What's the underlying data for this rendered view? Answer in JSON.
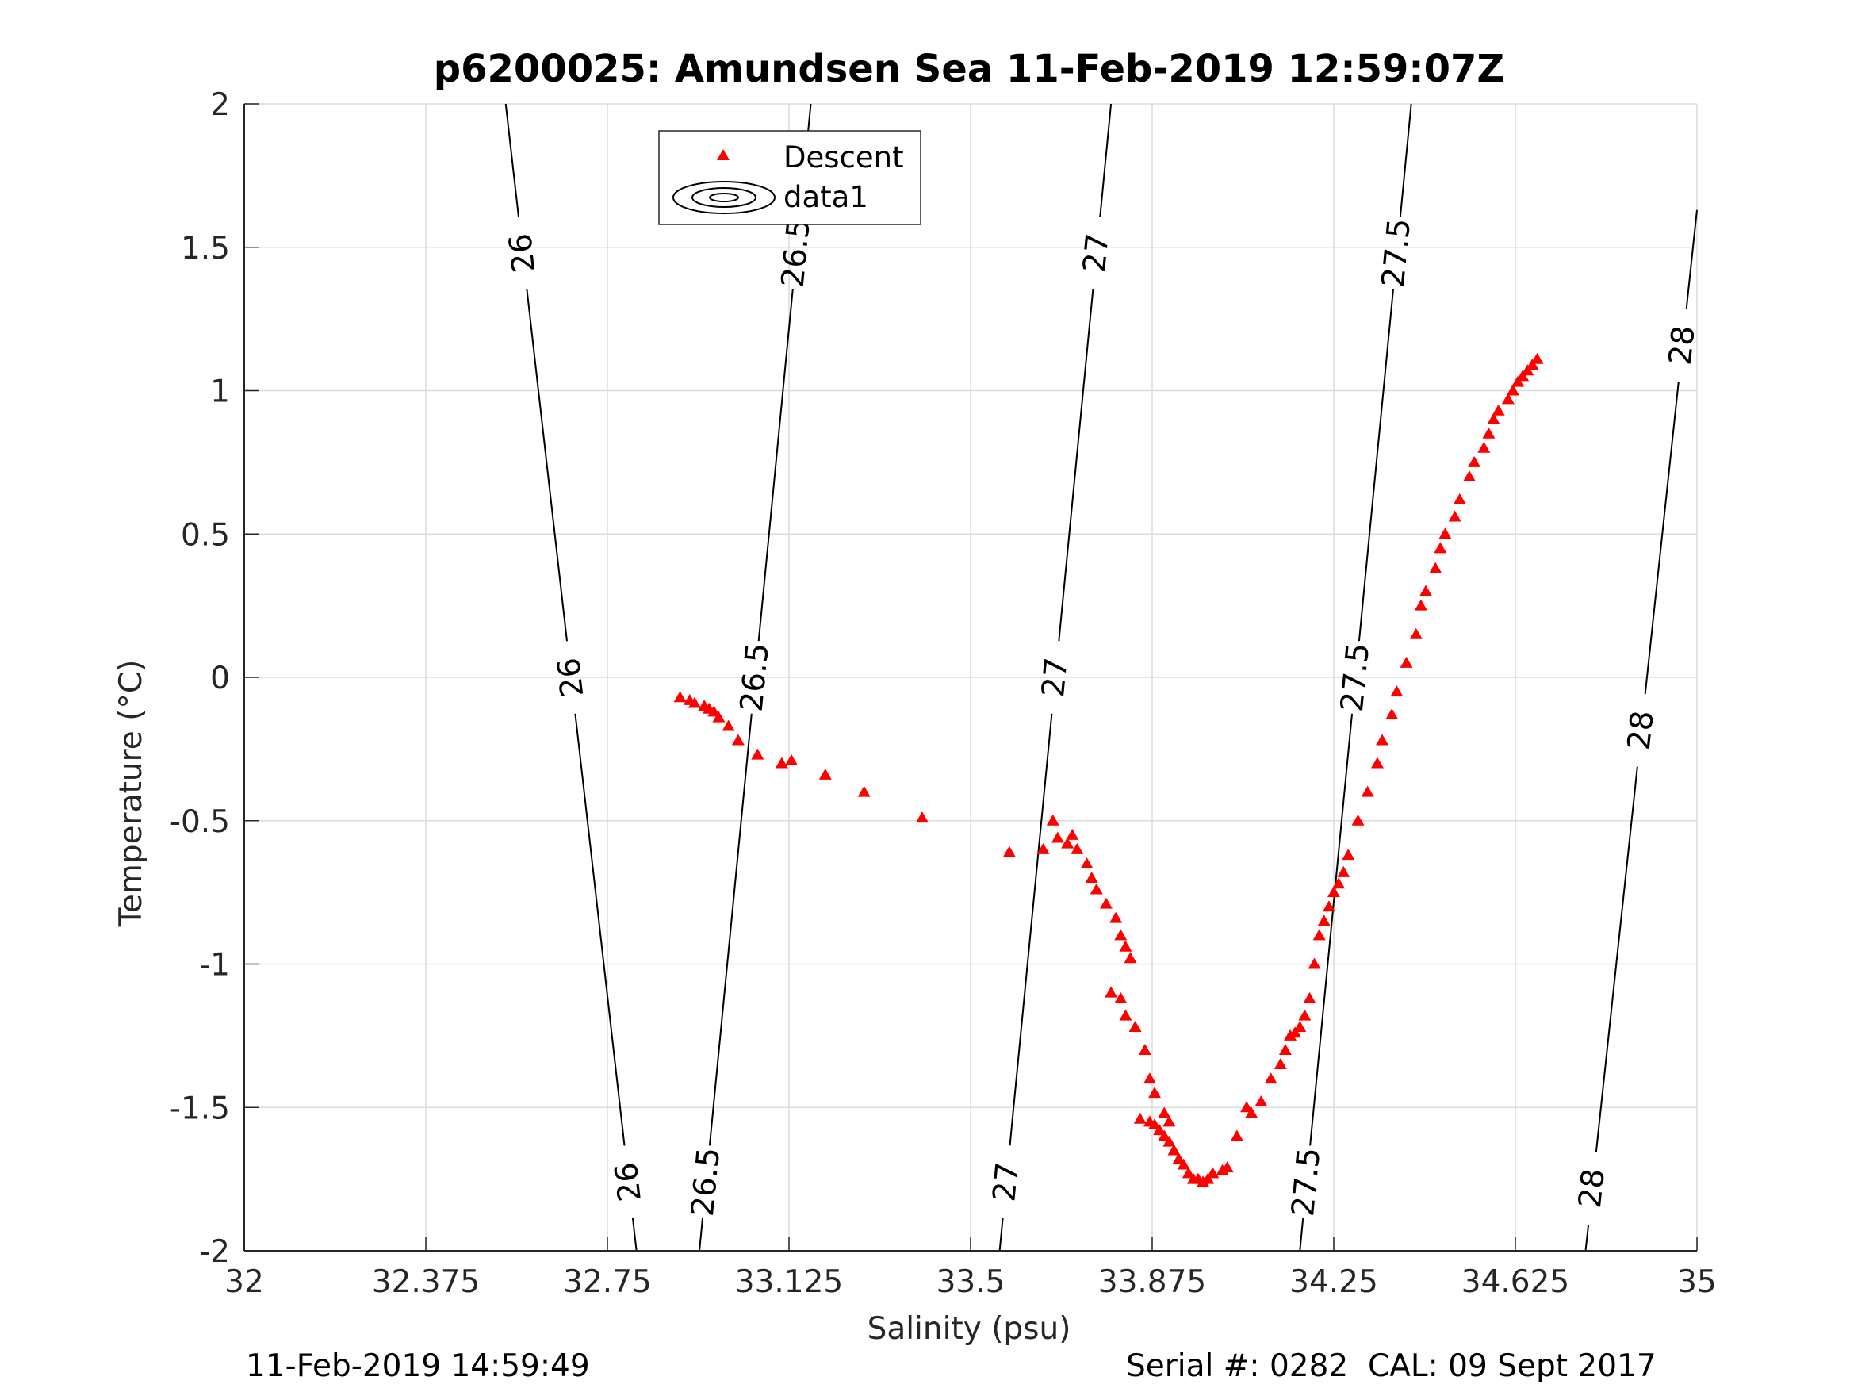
{
  "chart_data": {
    "type": "scatter",
    "title": "p6200025: Amundsen Sea 11-Feb-2019 12:59:07Z",
    "xlabel": "Salinity (psu)",
    "ylabel": "Temperature (°C)",
    "xlim": [
      32,
      35
    ],
    "ylim": [
      -2,
      2
    ],
    "xticks": [
      32,
      32.375,
      32.75,
      33.125,
      33.5,
      33.875,
      34.25,
      34.625,
      35
    ],
    "xtick_labels": [
      "32",
      "32.375",
      "32.75",
      "33.125",
      "33.5",
      "33.875",
      "34.25",
      "34.625",
      "35"
    ],
    "yticks": [
      -2,
      -1.5,
      -1,
      -0.5,
      0,
      0.5,
      1,
      1.5,
      2
    ],
    "ytick_labels": [
      "-2",
      "-1.5",
      "-1",
      "-0.5",
      "0",
      "0.5",
      "1",
      "1.5",
      "2"
    ],
    "grid": true,
    "legend_position": "top-center",
    "legend": [
      "Descent",
      "data1"
    ],
    "series": [
      {
        "name": "Descent",
        "marker": "triangle",
        "color": "#ff0000",
        "x": [
          32.9,
          32.92,
          32.93,
          32.95,
          32.96,
          32.97,
          32.98,
          33.0,
          33.02,
          33.06,
          33.11,
          33.13,
          33.2,
          33.28,
          33.4,
          33.58,
          33.65,
          33.67,
          33.68,
          33.7,
          33.71,
          33.72,
          33.74,
          33.75,
          33.76,
          33.78,
          33.8,
          33.81,
          33.82,
          33.83,
          33.79,
          33.81,
          33.82,
          33.84,
          33.86,
          33.87,
          33.88,
          33.9,
          33.91,
          33.85,
          33.87,
          33.88,
          33.89,
          33.9,
          33.91,
          33.92,
          33.93,
          33.94,
          33.95,
          33.96,
          33.97,
          33.98,
          33.99,
          34.0,
          34.02,
          34.03,
          34.05,
          34.07,
          34.08,
          34.1,
          34.12,
          34.14,
          34.15,
          34.16,
          34.17,
          34.18,
          34.19,
          34.2,
          34.21,
          34.22,
          34.23,
          34.24,
          34.25,
          34.26,
          34.27,
          34.28,
          34.3,
          34.32,
          34.34,
          34.35,
          34.37,
          34.38,
          34.4,
          34.42,
          34.43,
          34.44,
          34.46,
          34.47,
          34.48,
          34.5,
          34.51,
          34.53,
          34.54,
          34.56,
          34.57,
          34.58,
          34.59,
          34.61,
          34.62,
          34.63,
          34.64,
          34.65,
          34.66,
          34.67
        ],
        "y": [
          -0.07,
          -0.08,
          -0.09,
          -0.1,
          -0.11,
          -0.12,
          -0.14,
          -0.17,
          -0.22,
          -0.27,
          -0.3,
          -0.29,
          -0.34,
          -0.4,
          -0.49,
          -0.61,
          -0.6,
          -0.5,
          -0.56,
          -0.58,
          -0.55,
          -0.6,
          -0.65,
          -0.7,
          -0.74,
          -0.79,
          -0.84,
          -0.9,
          -0.94,
          -0.98,
          -1.1,
          -1.12,
          -1.18,
          -1.22,
          -1.3,
          -1.4,
          -1.45,
          -1.52,
          -1.55,
          -1.54,
          -1.55,
          -1.56,
          -1.58,
          -1.6,
          -1.62,
          -1.65,
          -1.68,
          -1.7,
          -1.73,
          -1.75,
          -1.75,
          -1.76,
          -1.75,
          -1.73,
          -1.72,
          -1.71,
          -1.6,
          -1.5,
          -1.52,
          -1.48,
          -1.4,
          -1.35,
          -1.3,
          -1.25,
          -1.24,
          -1.22,
          -1.18,
          -1.12,
          -1.0,
          -0.9,
          -0.85,
          -0.8,
          -0.75,
          -0.72,
          -0.68,
          -0.62,
          -0.5,
          -0.4,
          -0.3,
          -0.22,
          -0.13,
          -0.05,
          0.05,
          0.15,
          0.25,
          0.3,
          0.38,
          0.45,
          0.5,
          0.56,
          0.62,
          0.7,
          0.75,
          0.8,
          0.85,
          0.9,
          0.93,
          0.97,
          1.0,
          1.03,
          1.05,
          1.07,
          1.09,
          1.11
        ]
      }
    ],
    "contours": [
      {
        "label": "26",
        "x_bottom": 32.81,
        "x_top": 32.54
      },
      {
        "label": "26.5",
        "x_bottom": 32.94,
        "x_top": 33.17
      },
      {
        "label": "27",
        "x_bottom": 33.56,
        "x_top": 33.79
      },
      {
        "label": "27.5",
        "x_bottom": 34.18,
        "x_top": 34.41
      },
      {
        "label": "28",
        "x_bottom": 34.77,
        "x_top": 35.0
      }
    ]
  },
  "footer": {
    "timestamp": "11-Feb-2019 14:59:49",
    "serial": "Serial #: 0282  CAL: 09 Sept 2017"
  }
}
